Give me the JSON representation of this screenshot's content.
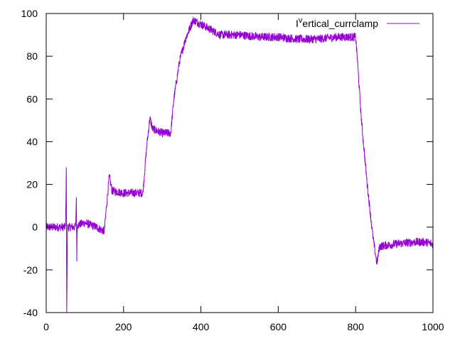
{
  "chart_data": {
    "type": "line",
    "title": "",
    "xlabel": "",
    "ylabel": "",
    "xlim": [
      0,
      1000
    ],
    "ylim": [
      -40,
      100
    ],
    "x_ticks": [
      0,
      200,
      400,
      600,
      800,
      1000
    ],
    "y_ticks": [
      -40,
      -20,
      0,
      20,
      40,
      60,
      80,
      100
    ],
    "x_tick_labels": [
      "0",
      "200",
      "400",
      "600",
      "800",
      "1000"
    ],
    "y_tick_labels": [
      "-40",
      "-20",
      "0",
      "20",
      "40",
      "60",
      "80",
      "100"
    ],
    "grid": false,
    "legend_position": "top-right",
    "series": [
      {
        "name": "I^vertical_currclamp",
        "name_parts": {
          "base": "I",
          "sup": "v",
          "rest": "ertical_currclamp"
        },
        "color": "#9400d3",
        "noise": 2,
        "points": [
          [
            0,
            0
          ],
          [
            50,
            0
          ],
          [
            52,
            28
          ],
          [
            53,
            -40
          ],
          [
            55,
            0
          ],
          [
            76,
            0
          ],
          [
            78,
            14
          ],
          [
            79,
            -16
          ],
          [
            80,
            1
          ],
          [
            100,
            2
          ],
          [
            130,
            0
          ],
          [
            150,
            -2
          ],
          [
            155,
            8
          ],
          [
            163,
            24
          ],
          [
            170,
            17
          ],
          [
            200,
            16
          ],
          [
            250,
            16
          ],
          [
            254,
            25
          ],
          [
            260,
            38
          ],
          [
            268,
            51
          ],
          [
            275,
            46
          ],
          [
            300,
            44
          ],
          [
            322,
            44
          ],
          [
            330,
            60
          ],
          [
            345,
            78
          ],
          [
            360,
            88
          ],
          [
            380,
            97
          ],
          [
            390,
            96
          ],
          [
            420,
            93
          ],
          [
            450,
            90
          ],
          [
            500,
            90
          ],
          [
            550,
            89
          ],
          [
            600,
            89
          ],
          [
            650,
            88
          ],
          [
            700,
            88
          ],
          [
            750,
            89
          ],
          [
            800,
            89
          ],
          [
            804,
            80
          ],
          [
            815,
            50
          ],
          [
            830,
            20
          ],
          [
            845,
            -5
          ],
          [
            855,
            -17
          ],
          [
            862,
            -9
          ],
          [
            900,
            -8
          ],
          [
            950,
            -7
          ],
          [
            980,
            -7
          ],
          [
            1000,
            -8
          ]
        ]
      }
    ]
  }
}
